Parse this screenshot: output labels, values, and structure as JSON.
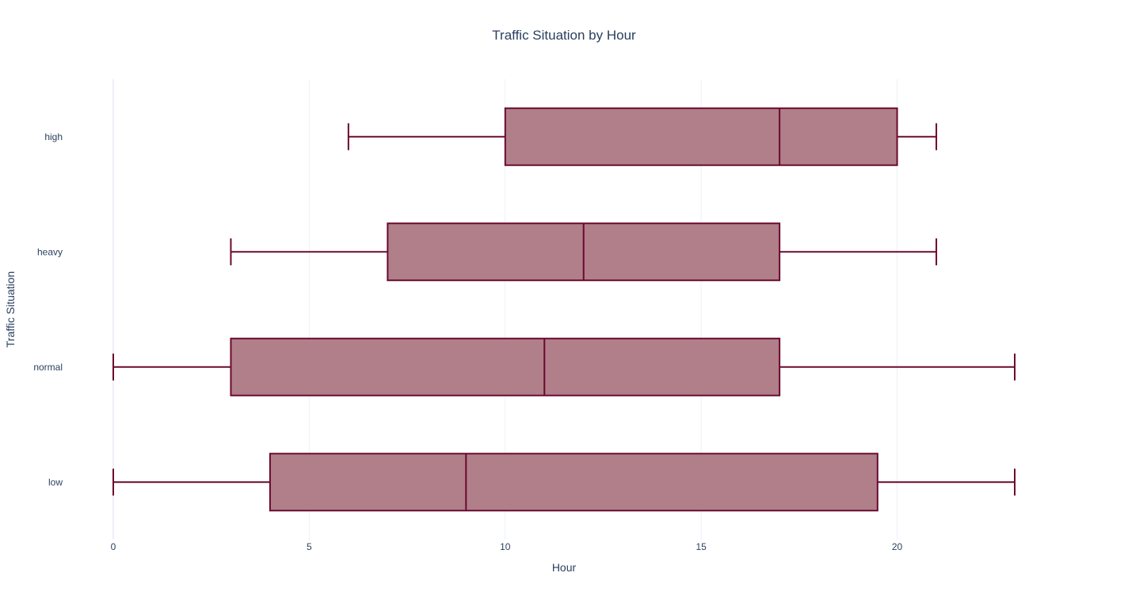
{
  "chart_data": {
    "type": "box",
    "orientation": "horizontal",
    "title": "Traffic Situation by Hour",
    "xlabel": "Hour",
    "ylabel": "Traffic Situation",
    "xlim": [
      0,
      23
    ],
    "x_ticks": [
      0,
      5,
      10,
      15,
      20
    ],
    "categories": [
      "low",
      "normal",
      "heavy",
      "high"
    ],
    "boxes": [
      {
        "category": "low",
        "min": 0,
        "q1": 4,
        "median": 9,
        "q3": 19.5,
        "max": 23
      },
      {
        "category": "normal",
        "min": 0,
        "q1": 3,
        "median": 11,
        "q3": 17,
        "max": 23
      },
      {
        "category": "heavy",
        "min": 3,
        "q1": 7,
        "median": 12,
        "q3": 17,
        "max": 21
      },
      {
        "category": "high",
        "min": 6,
        "q1": 10,
        "median": 17,
        "q3": 20,
        "max": 21
      }
    ],
    "grid": true,
    "colors": {
      "box_fill": "#b07f8a",
      "box_line": "#6b0a2e"
    }
  }
}
